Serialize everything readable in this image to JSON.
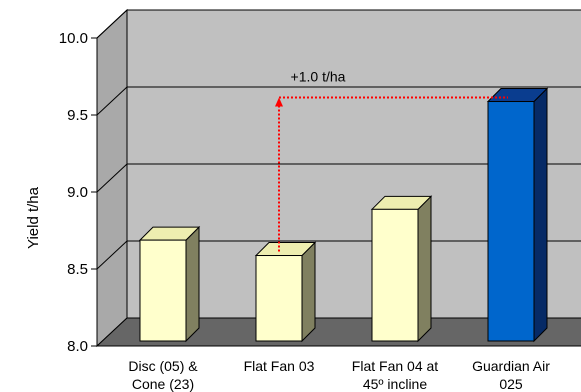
{
  "chart_data": {
    "type": "bar",
    "title": "",
    "xlabel": "",
    "ylabel": "Yield t/ha",
    "ylim": [
      8.0,
      10.0
    ],
    "yticks": [
      "8.0",
      "8.5",
      "9.0",
      "9.5",
      "10.0"
    ],
    "grid": true,
    "categories": [
      [
        "Disc (05) &",
        "Cone (23)"
      ],
      [
        "Flat Fan 03"
      ],
      [
        "Flat Fan 04 at",
        "45º incline"
      ],
      [
        "Guardian Air",
        "025"
      ]
    ],
    "values": [
      8.72,
      8.62,
      8.92,
      9.62
    ],
    "colors": {
      "bar_default": "#ffffcc",
      "bar_highlight": "#0066cc",
      "wall": "#c0c0c0",
      "floor": "#666666",
      "annotation": "#ff0000"
    },
    "highlight_index": 3,
    "annotation": {
      "text": "+1.0 t/ha",
      "from_index": 1,
      "to_index": 3
    }
  }
}
